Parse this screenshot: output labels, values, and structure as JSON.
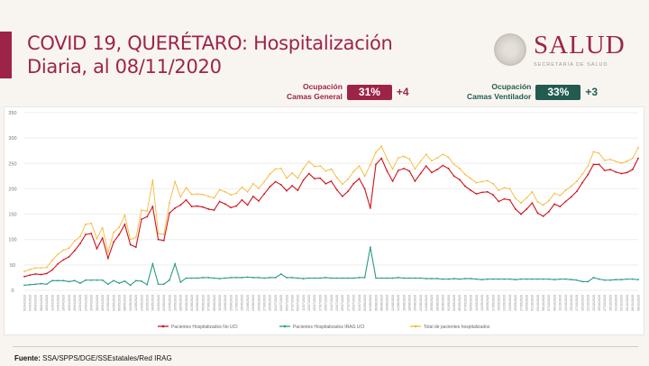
{
  "header": {
    "title_bold": "COVID 19, QUERÉTARO:",
    "title_rest": " Hospitalización",
    "title_line2": "Diaria, al 08/11/2020"
  },
  "logo": {
    "name": "SALUD",
    "subtitle": "SECRETARÍA DE SALUD",
    "icon": "national-seal-icon"
  },
  "kpis": [
    {
      "label1": "Ocupación",
      "label2": "Camas General",
      "value": "31%",
      "delta": "+4",
      "color": "#9d2449"
    },
    {
      "label1": "Ocupación",
      "label2": "Camas Ventilador",
      "value": "33%",
      "delta": "+3",
      "color": "#235b4e"
    }
  ],
  "footer": {
    "bold": "Fuente:",
    "text": " SSA/SPPS/DGE/SSEstatales/Red IRAG"
  },
  "chart_data": {
    "type": "line",
    "ylim": [
      0,
      350
    ],
    "yticks": [
      0,
      50,
      100,
      150,
      200,
      250,
      300,
      350
    ],
    "grid": true,
    "legend_position": "bottom",
    "x": [
      "02/04/2020",
      "04/04/2020",
      "06/04/2020",
      "08/04/2020",
      "10/04/2020",
      "12/04/2020",
      "14/04/2020",
      "16/04/2020",
      "18/04/2020",
      "20/04/2020",
      "22/04/2020",
      "24/04/2020",
      "26/04/2020",
      "28/04/2020",
      "30/04/2020",
      "02/05/2020",
      "04/05/2020",
      "06/05/2020",
      "08/05/2020",
      "10/05/2020",
      "12/05/2020",
      "14/05/2020",
      "16/05/2020",
      "18/05/2020",
      "20/05/2020",
      "22/05/2020",
      "24/05/2020",
      "26/05/2020",
      "28/05/2020",
      "30/05/2020",
      "01/06/2020",
      "03/06/2020",
      "05/06/2020",
      "07/06/2020",
      "09/06/2020",
      "11/06/2020",
      "13/06/2020",
      "15/06/2020",
      "17/06/2020",
      "19/06/2020",
      "21/06/2020",
      "23/06/2020",
      "25/06/2020",
      "27/06/2020",
      "29/06/2020",
      "01/07/2020",
      "03/07/2020",
      "05/07/2020",
      "07/07/2020",
      "09/07/2020",
      "11/07/2020",
      "13/07/2020",
      "15/07/2020",
      "17/07/2020",
      "19/07/2020",
      "21/07/2020",
      "23/07/2020",
      "25/07/2020",
      "27/07/2020",
      "29/07/2020",
      "31/07/2020",
      "02/08/2020",
      "04/08/2020",
      "06/08/2020",
      "08/08/2020",
      "10/08/2020",
      "12/08/2020",
      "14/08/2020",
      "16/08/2020",
      "18/08/2020",
      "20/08/2020",
      "22/08/2020",
      "24/08/2020",
      "26/08/2020",
      "28/08/2020",
      "30/08/2020",
      "01/09/2020",
      "03/09/2020",
      "05/09/2020",
      "07/09/2020",
      "09/09/2020",
      "11/09/2020",
      "13/09/2020",
      "15/09/2020",
      "17/09/2020",
      "19/09/2020",
      "21/09/2020",
      "23/09/2020",
      "25/09/2020",
      "27/09/2020",
      "29/09/2020",
      "01/10/2020",
      "03/10/2020",
      "05/10/2020",
      "07/10/2020",
      "09/10/2020",
      "11/10/2020",
      "13/10/2020",
      "15/10/2020",
      "17/10/2020",
      "19/10/2020",
      "21/10/2020",
      "23/10/2020",
      "25/10/2020",
      "27/10/2020",
      "29/10/2020",
      "31/10/2020",
      "02/11/2020",
      "04/11/2020",
      "06/11/2020",
      "08/11/2020"
    ],
    "series": [
      {
        "name": "Pacientes Hospitalizados No UCI",
        "color": "#d0121b",
        "values": [
          27,
          30,
          32,
          31,
          33,
          40,
          52,
          60,
          66,
          78,
          92,
          110,
          112,
          82,
          103,
          63,
          95,
          110,
          130,
          90,
          85,
          140,
          145,
          165,
          100,
          98,
          152,
          162,
          168,
          178,
          165,
          166,
          164,
          160,
          158,
          175,
          170,
          163,
          166,
          178,
          168,
          185,
          176,
          190,
          204,
          214,
          208,
          196,
          206,
          197,
          217,
          230,
          220,
          221,
          210,
          215,
          198,
          185,
          195,
          210,
          220,
          200,
          162,
          248,
          260,
          235,
          215,
          236,
          240,
          235,
          215,
          230,
          245,
          232,
          238,
          246,
          240,
          225,
          218,
          205,
          197,
          190,
          193,
          194,
          188,
          175,
          180,
          178,
          160,
          150,
          160,
          172,
          152,
          146,
          155,
          170,
          165,
          175,
          184,
          195,
          212,
          228,
          248,
          248,
          236,
          238,
          233,
          230,
          232,
          238,
          260
        ]
      },
      {
        "name": "Pacientes Hospitalizados IRAG UCI",
        "color": "#2a9a86",
        "values": [
          10,
          11,
          12,
          13,
          12,
          19,
          19,
          19,
          17,
          19,
          14,
          20,
          20,
          20,
          20,
          12,
          19,
          14,
          18,
          10,
          19,
          18,
          11,
          52,
          12,
          12,
          20,
          52,
          16,
          24,
          24,
          24,
          25,
          25,
          24,
          23,
          24,
          25,
          25,
          25,
          26,
          25,
          25,
          24,
          25,
          25,
          32,
          25,
          25,
          24,
          23,
          24,
          24,
          24,
          25,
          24,
          24,
          24,
          24,
          24,
          25,
          25,
          85,
          24,
          24,
          24,
          24,
          25,
          24,
          24,
          24,
          24,
          23,
          23,
          23,
          22,
          22,
          23,
          22,
          23,
          23,
          22,
          21,
          22,
          22,
          22,
          22,
          22,
          21,
          22,
          22,
          22,
          22,
          22,
          22,
          21,
          22,
          22,
          21,
          20,
          17,
          17,
          25,
          22,
          20,
          20,
          21,
          21,
          22,
          22,
          21
        ]
      },
      {
        "name": "Total de pacientes hospitalizados",
        "color": "#f6b93b",
        "values": [
          37,
          41,
          44,
          44,
          45,
          59,
          71,
          79,
          83,
          97,
          106,
          130,
          132,
          102,
          123,
          75,
          114,
          124,
          148,
          100,
          104,
          158,
          156,
          217,
          112,
          110,
          172,
          214,
          184,
          202,
          189,
          190,
          189,
          185,
          182,
          198,
          194,
          188,
          191,
          203,
          194,
          210,
          201,
          214,
          229,
          239,
          240,
          221,
          231,
          221,
          240,
          254,
          244,
          245,
          235,
          239,
          222,
          209,
          219,
          234,
          245,
          225,
          247,
          272,
          284,
          259,
          239,
          261,
          264,
          259,
          239,
          254,
          268,
          255,
          261,
          268,
          262,
          248,
          240,
          228,
          220,
          212,
          214,
          216,
          210,
          197,
          202,
          200,
          181,
          172,
          182,
          194,
          174,
          168,
          177,
          191,
          187,
          197,
          205,
          215,
          229,
          245,
          273,
          270,
          256,
          258,
          254,
          251,
          254,
          260,
          281
        ]
      }
    ]
  }
}
